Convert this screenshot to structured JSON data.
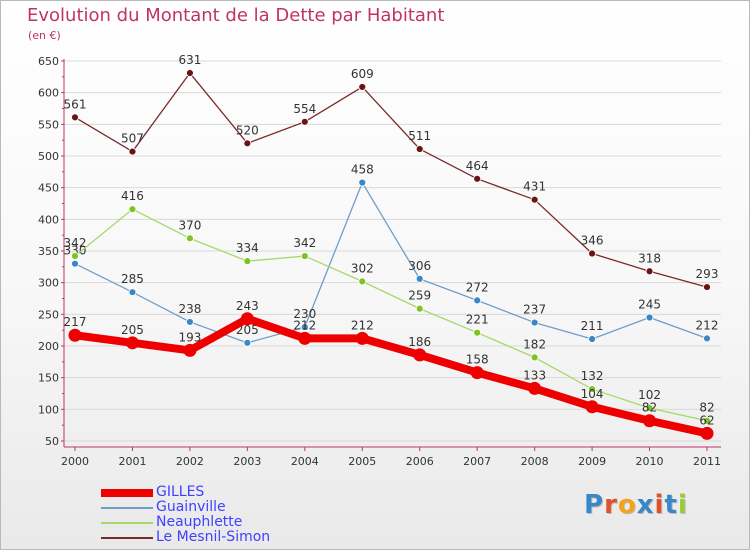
{
  "title": "Evolution du Montant de la Dette par Habitant",
  "unit": "(en €)",
  "brand": {
    "letters": [
      "P",
      "r",
      "o",
      "x",
      "i",
      "t",
      "i"
    ],
    "colors": [
      "#3a87c8",
      "#e0502a",
      "#f2a41c",
      "#3a87c8",
      "#e0502a",
      "#3a87c8",
      "#9acd32"
    ]
  },
  "colors": {
    "axis": "#c0336a",
    "grid": "#d9d9d9",
    "label": "#333333"
  },
  "chart_data": {
    "type": "line",
    "title": "Evolution du Montant de la Dette par Habitant",
    "subtitle": "(en €)",
    "x": [
      "2000",
      "2001",
      "2002",
      "2003",
      "2004",
      "2005",
      "2006",
      "2007",
      "2008",
      "2009",
      "2010",
      "2011"
    ],
    "ylim": [
      50,
      650
    ],
    "yticks": [
      50,
      100,
      150,
      200,
      250,
      300,
      350,
      400,
      450,
      500,
      550,
      600,
      650
    ],
    "grid": true,
    "legend_position": "bottom-left",
    "series": [
      {
        "name": "GILLES",
        "color": "#ee0000",
        "point_color": "#ee0000",
        "bold": true,
        "values": [
          217,
          205,
          193,
          243,
          212,
          212,
          186,
          158,
          133,
          104,
          82,
          62
        ]
      },
      {
        "name": "Guainville",
        "color": "#6f9ec9",
        "point_color": "#3a87c8",
        "bold": false,
        "values": [
          330,
          285,
          238,
          205,
          230,
          458,
          306,
          272,
          237,
          211,
          245,
          212
        ]
      },
      {
        "name": "Neauphlette",
        "color": "#a7d86a",
        "point_color": "#7cc520",
        "bold": false,
        "values": [
          342,
          416,
          370,
          334,
          342,
          302,
          259,
          221,
          182,
          132,
          102,
          82
        ]
      },
      {
        "name": "Le Mesnil-Simon",
        "color": "#7a2a2a",
        "point_color": "#6b1414",
        "bold": false,
        "values": [
          561,
          507,
          631,
          520,
          554,
          609,
          511,
          464,
          431,
          346,
          318,
          293
        ]
      }
    ]
  }
}
